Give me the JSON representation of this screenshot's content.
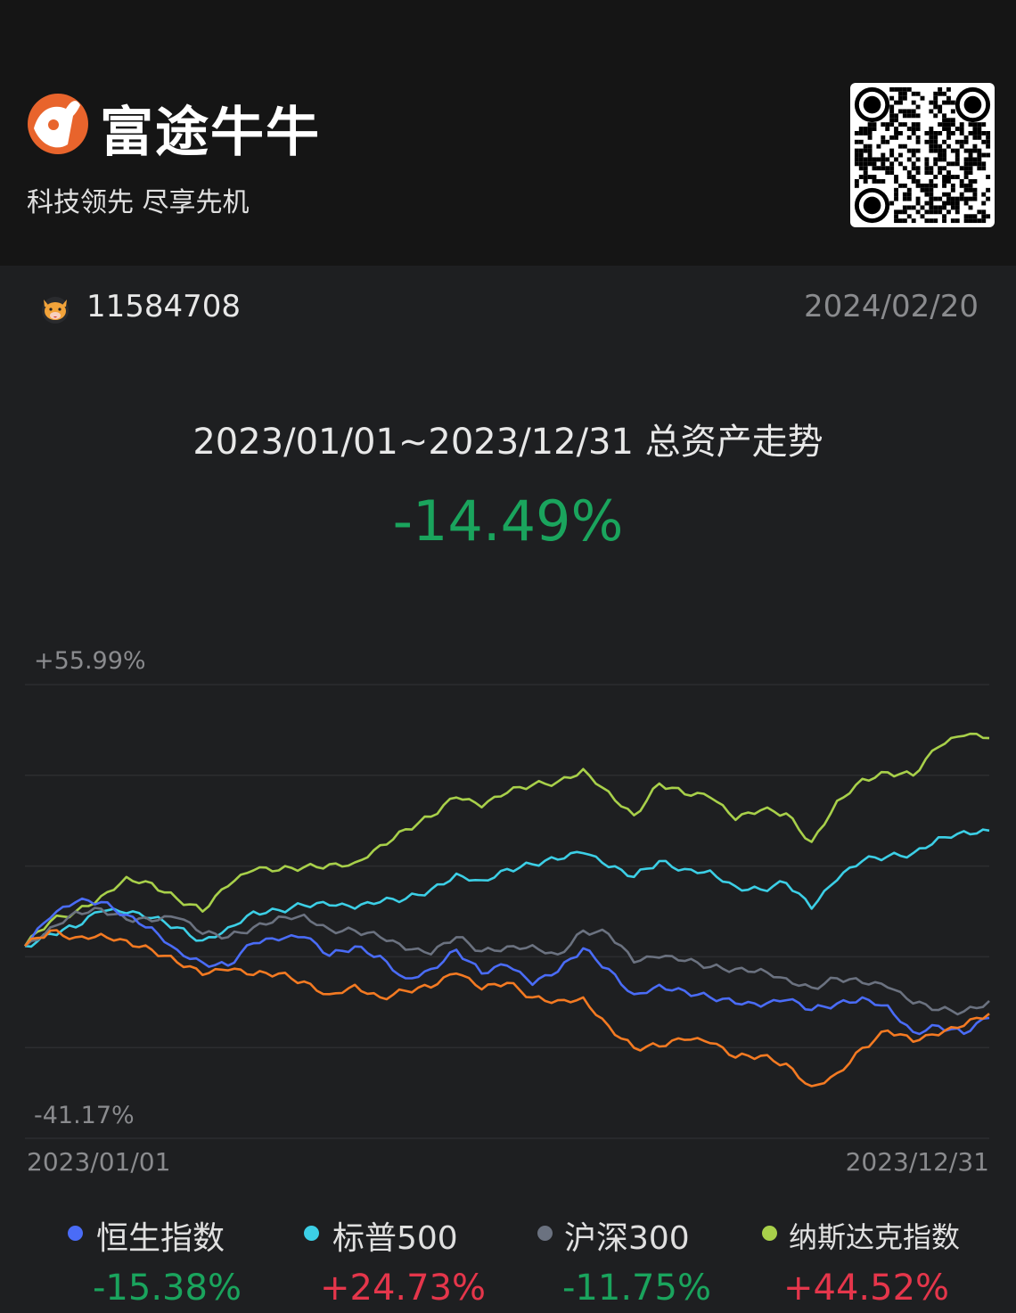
{
  "header": {
    "brand": "富途牛牛",
    "slogan": "科技领先 尽享先机",
    "brand_color": "#e8642c"
  },
  "user": {
    "id": "11584708",
    "date": "2024/02/20"
  },
  "summary": {
    "title": "2023/01/01~2023/12/31 总资产走势",
    "return": "-14.49%",
    "return_color": "#1aa45d"
  },
  "chart_data": {
    "type": "line",
    "ylim": [
      -41.17,
      55.99
    ],
    "y_tick_labels": [
      "+55.99%",
      "-41.17%"
    ],
    "x_tick_labels": [
      "2023/01/01",
      "2023/12/31"
    ],
    "grid": true,
    "unit": "%",
    "series": [
      {
        "key": "account",
        "color": "#f47a22",
        "values": [
          0,
          3.3,
          1.9,
          2.6,
          1.2,
          -0.8,
          -3.5,
          -6.2,
          -5.2,
          -6.2,
          -5.9,
          -7.6,
          -10.3,
          -8.3,
          -11.0,
          -9.6,
          -8.9,
          -5.9,
          -9.3,
          -7.9,
          -11.0,
          -11.6,
          -11.0,
          -17.1,
          -21.8,
          -21.5,
          -20.1,
          -20.8,
          -23.9,
          -23.5,
          -25.2,
          -30.0,
          -27.2,
          -21.8,
          -18.1,
          -20.5,
          -19.1,
          -17.1,
          -14.49
        ]
      },
      {
        "name": "恒生指数",
        "color": "#4a6cf7",
        "values": [
          0,
          6.0,
          9.4,
          9.4,
          6.7,
          4.0,
          -0.8,
          -3.5,
          -4.2,
          0.6,
          1.2,
          1.9,
          -2.1,
          -0.1,
          -2.1,
          -6.9,
          -4.9,
          -0.8,
          -5.9,
          -4.2,
          -8.3,
          -5.5,
          -0.5,
          -4.9,
          -10.3,
          -8.3,
          -9.6,
          -11.0,
          -12.3,
          -13.0,
          -11.6,
          -13.7,
          -12.3,
          -11.0,
          -12.7,
          -18.4,
          -17.1,
          -18.8,
          -15.38
        ]
      },
      {
        "name": "标普500",
        "color": "#3ccfe6",
        "values": [
          0,
          2.6,
          4.0,
          7.4,
          7.0,
          6.0,
          4.0,
          1.2,
          4.0,
          7.4,
          7.7,
          8.7,
          8.7,
          8.0,
          9.4,
          10.1,
          12.1,
          15.5,
          14.1,
          16.5,
          17.5,
          18.5,
          19.9,
          16.9,
          14.8,
          18.2,
          16.5,
          16.2,
          12.8,
          12.1,
          13.5,
          8.0,
          14.1,
          18.2,
          19.2,
          19.9,
          23.3,
          24.6,
          24.73
        ]
      },
      {
        "name": "沪深300",
        "color": "#6b7280",
        "values": [
          0,
          4.0,
          7.4,
          8.0,
          5.7,
          5.3,
          6.0,
          2.6,
          1.9,
          4.0,
          6.3,
          6.7,
          3.6,
          3.3,
          1.9,
          -0.8,
          -1.8,
          1.9,
          -1.1,
          -0.1,
          0.2,
          -1.8,
          3.3,
          2.6,
          -3.5,
          -2.5,
          -3.2,
          -4.5,
          -4.9,
          -4.9,
          -6.9,
          -8.9,
          -6.9,
          -7.9,
          -8.9,
          -12.3,
          -13.7,
          -14.0,
          -11.75
        ]
      },
      {
        "name": "纳斯达克指数",
        "color": "#a8d04a",
        "values": [
          0,
          5.3,
          7.4,
          10.7,
          14.8,
          13.5,
          10.1,
          7.4,
          12.8,
          16.2,
          16.2,
          16.9,
          17.5,
          17.9,
          21.6,
          25.0,
          27.7,
          31.8,
          29.7,
          32.8,
          34.5,
          35.2,
          37.9,
          33.1,
          28.0,
          34.8,
          32.5,
          31.8,
          27.0,
          29.1,
          28.4,
          22.3,
          31.1,
          35.8,
          37.2,
          36.5,
          42.6,
          45.0,
          44.52
        ]
      }
    ]
  },
  "legend": [
    {
      "name": "恒生指数",
      "value": "-15.38%",
      "color": "#4a6cf7",
      "value_color": "#1aa45d"
    },
    {
      "name": "标普500",
      "value": "+24.73%",
      "color": "#3ccfe6",
      "value_color": "#e5364b"
    },
    {
      "name": "沪深300",
      "value": "-11.75%",
      "color": "#6b7280",
      "value_color": "#1aa45d"
    },
    {
      "name": "纳斯达克指数",
      "value": "+44.52%",
      "color": "#a8d04a",
      "value_color": "#e5364b"
    }
  ],
  "icons": {
    "logo": "futu-bull-logo",
    "qr": "qr-code",
    "avatar": "bull-avatar-icon"
  }
}
